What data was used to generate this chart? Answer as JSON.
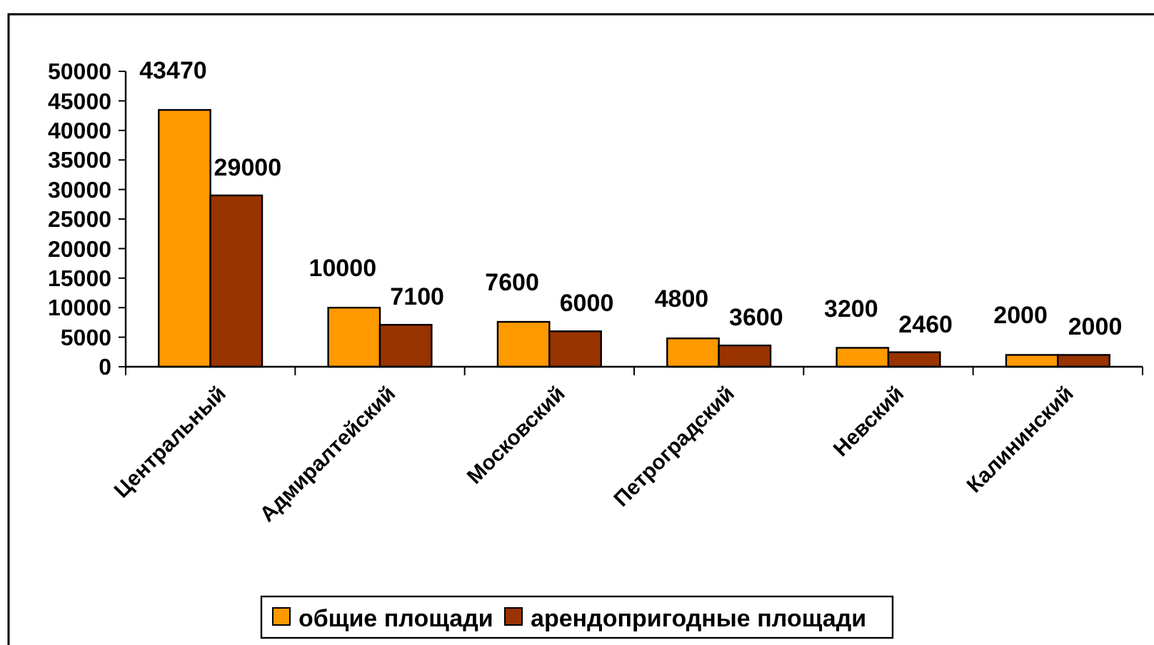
{
  "chart_data": {
    "type": "bar",
    "categories": [
      "Центральный",
      "Адмиралтейский",
      "Московский",
      "Петроградский",
      "Невский",
      "Калининский"
    ],
    "series": [
      {
        "name": "общие площади",
        "color": "#ff9900",
        "values": [
          43470,
          10000,
          7600,
          4800,
          3200,
          2000
        ]
      },
      {
        "name": "арендопригодные площади",
        "color": "#993300",
        "values": [
          29000,
          7100,
          6000,
          3600,
          2460,
          2000
        ]
      }
    ],
    "ylim": [
      0,
      50000
    ],
    "yticks": [
      0,
      5000,
      10000,
      15000,
      20000,
      25000,
      30000,
      35000,
      40000,
      45000,
      50000
    ],
    "data_labels": true,
    "legend": "bottom",
    "grid": false
  }
}
